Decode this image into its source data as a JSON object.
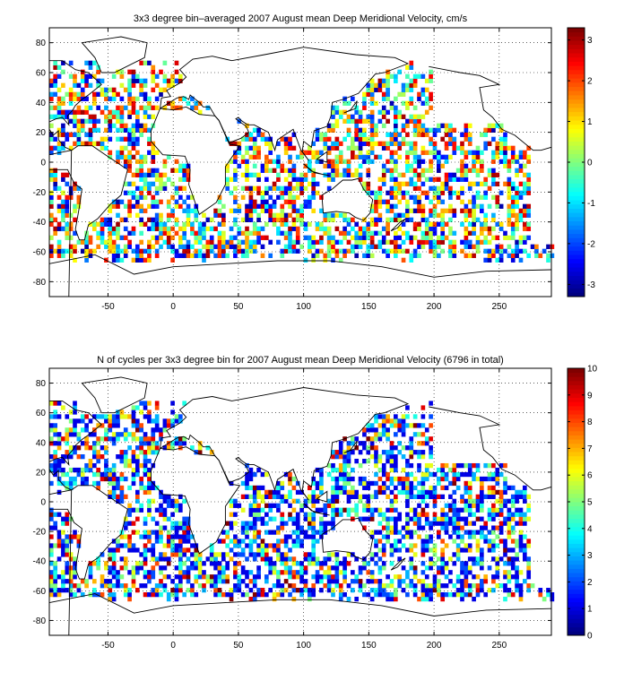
{
  "chart_data": [
    {
      "type": "heatmap",
      "title": "3x3 degree bin–averaged 2007 August mean Deep Meridional Velocity, cm/s",
      "xlim": [
        -95,
        290
      ],
      "ylim": [
        -90,
        90
      ],
      "xticks": [
        "-50",
        "0",
        "50",
        "100",
        "150",
        "200",
        "250"
      ],
      "xtick_values": [
        -50,
        0,
        50,
        100,
        150,
        200,
        250
      ],
      "yticks": [
        "80",
        "60",
        "40",
        "20",
        "0",
        "-20",
        "-40",
        "-60",
        "-80"
      ],
      "ytick_values": [
        80,
        60,
        40,
        20,
        0,
        -20,
        -40,
        -60,
        -80
      ],
      "grid": "dotted",
      "bin_deg": 3,
      "colorbar": {
        "range": [
          -3.3,
          3.3
        ],
        "ticks": [
          "3",
          "2",
          "1",
          "0",
          "-1",
          "-2",
          "-3"
        ],
        "tick_values": [
          3,
          2,
          1,
          0,
          -1,
          -2,
          -3
        ],
        "colormap": "jet"
      },
      "seed": 7
    },
    {
      "type": "heatmap",
      "title": "N of cycles per 3x3 degree bin for 2007 August mean Deep Meridional Velocity (6796 in total)",
      "xlim": [
        -95,
        290
      ],
      "ylim": [
        -90,
        90
      ],
      "xticks": [
        "-50",
        "0",
        "50",
        "100",
        "150",
        "200",
        "250"
      ],
      "xtick_values": [
        -50,
        0,
        50,
        100,
        150,
        200,
        250
      ],
      "yticks": [
        "80",
        "60",
        "40",
        "20",
        "0",
        "-20",
        "-40",
        "-60",
        "-80"
      ],
      "ytick_values": [
        80,
        60,
        40,
        20,
        0,
        -20,
        -40,
        -60,
        -80
      ],
      "grid": "dotted",
      "bin_deg": 3,
      "colorbar": {
        "range": [
          0,
          10
        ],
        "ticks": [
          "10",
          "9",
          "8",
          "7",
          "6",
          "5",
          "4",
          "3",
          "2",
          "1",
          "0"
        ],
        "tick_values": [
          10,
          9,
          8,
          7,
          6,
          5,
          4,
          3,
          2,
          1,
          0
        ],
        "colormap": "jet"
      },
      "seed": 19
    }
  ]
}
